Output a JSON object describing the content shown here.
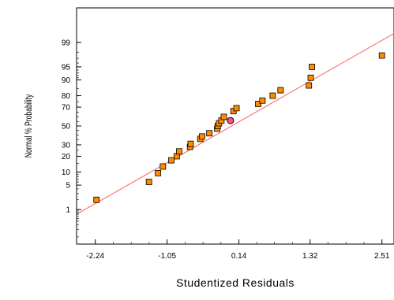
{
  "chart_data": {
    "type": "scatter",
    "xlabel": "Studentized Residuals",
    "ylabel": "Normal % Probability",
    "x_ticks": [
      -2.24,
      -1.05,
      0.14,
      1.32,
      2.51
    ],
    "x_tick_labels": [
      "-2.24",
      "-1.05",
      "0.14",
      "1.32",
      "2.51"
    ],
    "x_range": [
      -2.55,
      2.71
    ],
    "y_scale": "normal-probability",
    "y_ticks": [
      1,
      5,
      10,
      20,
      30,
      50,
      70,
      80,
      90,
      95,
      99
    ],
    "y_tick_labels": [
      "1",
      "5",
      "10",
      "20",
      "30",
      "50",
      "70",
      "80",
      "90",
      "95",
      "99"
    ],
    "y_range": [
      0.05,
      99.95
    ],
    "grid": false,
    "reference_line": {
      "color": "#ff6060",
      "from": [
        -2.55,
        0.7
      ],
      "to": [
        2.71,
        99.5
      ]
    },
    "marker_color": "#ff8c00",
    "highlight_color": "#ff4f87",
    "points": [
      {
        "x": -2.22,
        "y": 2
      },
      {
        "x": -1.35,
        "y": 6
      },
      {
        "x": -1.2,
        "y": 9.5
      },
      {
        "x": -1.12,
        "y": 13
      },
      {
        "x": -0.98,
        "y": 17
      },
      {
        "x": -0.89,
        "y": 20
      },
      {
        "x": -0.85,
        "y": 24
      },
      {
        "x": -0.67,
        "y": 28
      },
      {
        "x": -0.66,
        "y": 31
      },
      {
        "x": -0.5,
        "y": 36
      },
      {
        "x": -0.47,
        "y": 38.5
      },
      {
        "x": -0.35,
        "y": 42
      },
      {
        "x": -0.22,
        "y": 47
      },
      {
        "x": -0.21,
        "y": 50
      },
      {
        "x": -0.19,
        "y": 53
      },
      {
        "x": -0.15,
        "y": 56
      },
      {
        "x": -0.11,
        "y": 60
      },
      {
        "x": 0.05,
        "y": 66
      },
      {
        "x": 0.1,
        "y": 69
      },
      {
        "x": 0.46,
        "y": 73
      },
      {
        "x": 0.53,
        "y": 76
      },
      {
        "x": 0.7,
        "y": 80
      },
      {
        "x": 0.83,
        "y": 84
      },
      {
        "x": 1.3,
        "y": 87
      },
      {
        "x": 1.33,
        "y": 91
      },
      {
        "x": 1.35,
        "y": 95
      },
      {
        "x": 2.51,
        "y": 97.5
      },
      {
        "x": 0.0,
        "y": 56,
        "highlight": true
      }
    ]
  }
}
